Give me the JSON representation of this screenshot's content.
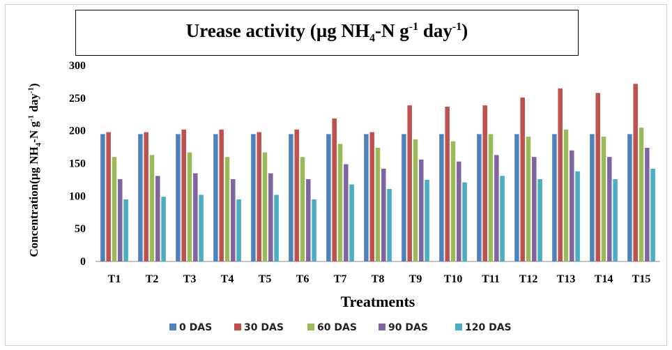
{
  "title": {
    "main": "Urease activity (µg NH",
    "sub": "4",
    "mid": "-N g",
    "sup1": "-1",
    "mid2": " day",
    "sup2": "-1",
    "end": ")"
  },
  "ylabel": {
    "a": "Concentration(µg NH",
    "sub": "4",
    "b": "-N g",
    "sup1": "-1",
    "c": " day",
    "sup2": "-1",
    "d": ")"
  },
  "chart_data": {
    "type": "bar",
    "title": "Urease activity (µg NH4-N g-1 day-1)",
    "xlabel": "Treatments",
    "ylabel": "Concentration(µg NH4-N g-1 day-1)",
    "ylim": [
      0,
      300
    ],
    "yticks": [
      0,
      50,
      100,
      150,
      200,
      250,
      300
    ],
    "categories": [
      "T1",
      "T2",
      "T3",
      "T4",
      "T5",
      "T6",
      "T7",
      "T8",
      "T9",
      "T10",
      "T11",
      "T12",
      "T13",
      "T14",
      "T15"
    ],
    "series": [
      {
        "name": "0 DAS",
        "color": "#4f81bd",
        "values": [
          195,
          195,
          195,
          195,
          195,
          195,
          195,
          195,
          195,
          195,
          195,
          195,
          195,
          195,
          195
        ]
      },
      {
        "name": "30 DAS",
        "color": "#c0504d",
        "values": [
          198,
          198,
          202,
          202,
          198,
          202,
          219,
          198,
          239,
          237,
          239,
          251,
          265,
          258,
          272
        ]
      },
      {
        "name": "60 DAS",
        "color": "#9bbb59",
        "values": [
          160,
          163,
          167,
          160,
          167,
          160,
          180,
          174,
          187,
          184,
          195,
          191,
          202,
          191,
          205
        ]
      },
      {
        "name": "90 DAS",
        "color": "#8064a2",
        "values": [
          126,
          131,
          135,
          126,
          135,
          126,
          149,
          142,
          156,
          153,
          163,
          160,
          170,
          160,
          174
        ]
      },
      {
        "name": "120 DAS",
        "color": "#4bacc6",
        "values": [
          95,
          99,
          102,
          95,
          102,
          95,
          118,
          111,
          125,
          121,
          131,
          126,
          138,
          126,
          142
        ]
      }
    ],
    "legend_position": "bottom",
    "grid": false
  }
}
